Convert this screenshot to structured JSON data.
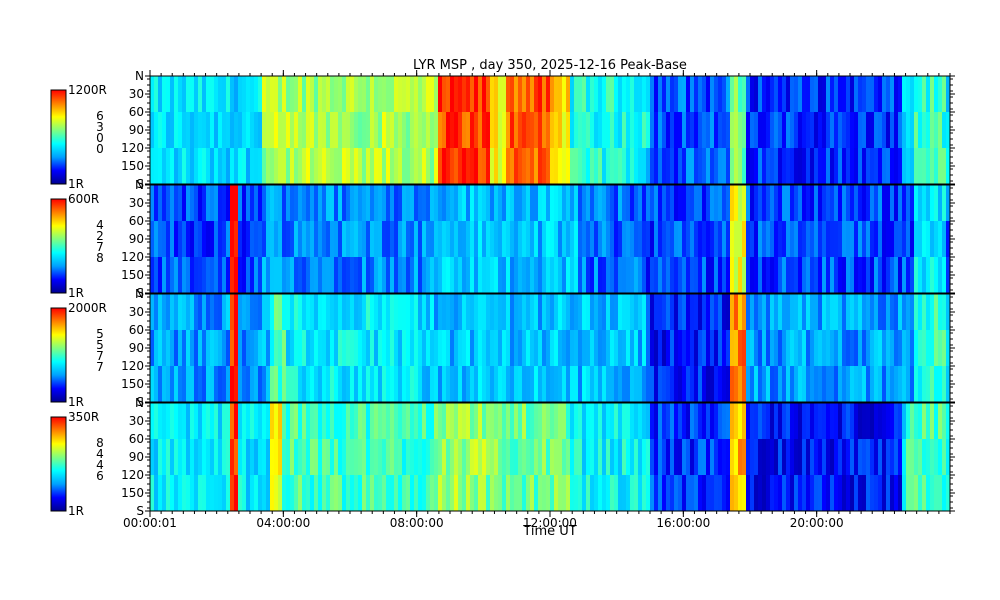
{
  "chart_data": {
    "type": "heatmap",
    "title": "LYR MSP , day 350, 2025-12-16 Peak-Base",
    "xlabel": "Time UT",
    "x_ticks": [
      "00:00:01",
      "04:00:00",
      "08:00:00",
      "12:00:00",
      "16:00:00",
      "20:00:00"
    ],
    "x_range_hours": [
      0,
      24
    ],
    "x_tick_hours": [
      0,
      4,
      8,
      12,
      16,
      20
    ],
    "y_range_deg": [
      0,
      180
    ],
    "y_ticks": [
      "N",
      "30",
      "60",
      "90",
      "120",
      "150",
      "S"
    ],
    "y_tick_deg": [
      0,
      30,
      60,
      90,
      120,
      150,
      180
    ],
    "colormap": [
      "#00008f",
      "#0000ff",
      "#00a0ff",
      "#00ffff",
      "#80ff80",
      "#ffff00",
      "#ff8000",
      "#ff0000"
    ],
    "channels": [
      {
        "wavelength_label": "6300",
        "colorbar_max": "1200R",
        "colorbar_min": "1R",
        "base": 0.38,
        "events": [
          {
            "start": 3.3,
            "end": 8.6,
            "level": 0.62
          },
          {
            "start": 8.6,
            "end": 10.2,
            "level": 0.93
          },
          {
            "start": 10.2,
            "end": 10.6,
            "level": 0.72
          },
          {
            "start": 10.6,
            "end": 12.0,
            "level": 0.9
          },
          {
            "start": 12.0,
            "end": 12.6,
            "level": 0.75
          },
          {
            "start": 12.6,
            "end": 14.8,
            "level": 0.45
          },
          {
            "start": 14.9,
            "end": 17.3,
            "level": 0.22
          },
          {
            "start": 17.4,
            "end": 17.8,
            "level": 0.55
          },
          {
            "start": 17.8,
            "end": 22.5,
            "level": 0.18
          },
          {
            "start": 22.8,
            "end": 23.8,
            "level": 0.48
          }
        ]
      },
      {
        "wavelength_label": "4278",
        "colorbar_max": "600R",
        "colorbar_min": "1R",
        "base": 0.2,
        "events": [
          {
            "start": 2.4,
            "end": 2.55,
            "level": 0.95
          },
          {
            "start": 3.3,
            "end": 8.5,
            "level": 0.28
          },
          {
            "start": 8.5,
            "end": 12.8,
            "level": 0.34
          },
          {
            "start": 12.8,
            "end": 14.8,
            "level": 0.24
          },
          {
            "start": 17.4,
            "end": 17.8,
            "level": 0.7
          },
          {
            "start": 22.8,
            "end": 23.8,
            "level": 0.4
          }
        ]
      },
      {
        "wavelength_label": "5577",
        "colorbar_max": "2000R",
        "colorbar_min": "1R",
        "base": 0.3,
        "events": [
          {
            "start": 2.3,
            "end": 2.6,
            "level": 0.97
          },
          {
            "start": 3.5,
            "end": 4.0,
            "level": 0.5
          },
          {
            "start": 4.0,
            "end": 8.0,
            "level": 0.4
          },
          {
            "start": 8.0,
            "end": 14.8,
            "level": 0.34
          },
          {
            "start": 15.0,
            "end": 17.3,
            "level": 0.15
          },
          {
            "start": 17.4,
            "end": 17.8,
            "level": 0.85
          },
          {
            "start": 22.8,
            "end": 23.8,
            "level": 0.48
          }
        ]
      },
      {
        "wavelength_label": "8446",
        "colorbar_max": "350R",
        "colorbar_min": "1R",
        "base": 0.4,
        "events": [
          {
            "start": 2.35,
            "end": 2.6,
            "level": 0.96
          },
          {
            "start": 3.5,
            "end": 3.9,
            "level": 0.72
          },
          {
            "start": 3.9,
            "end": 8.5,
            "level": 0.5
          },
          {
            "start": 8.5,
            "end": 10.0,
            "level": 0.6
          },
          {
            "start": 10.0,
            "end": 12.6,
            "level": 0.55
          },
          {
            "start": 12.6,
            "end": 14.8,
            "level": 0.42
          },
          {
            "start": 14.9,
            "end": 17.3,
            "level": 0.18
          },
          {
            "start": 17.4,
            "end": 17.8,
            "level": 0.8
          },
          {
            "start": 17.8,
            "end": 22.5,
            "level": 0.14
          },
          {
            "start": 22.6,
            "end": 23.8,
            "level": 0.5
          }
        ]
      }
    ]
  }
}
